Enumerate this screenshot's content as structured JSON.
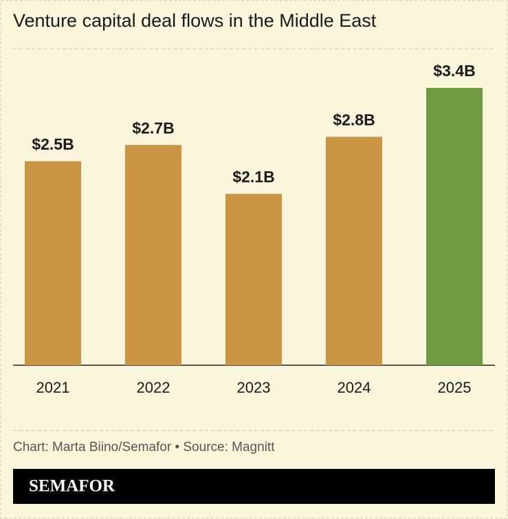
{
  "chart_data": {
    "type": "bar",
    "title": "Venture capital deal flows in the Middle East",
    "categories": [
      "2021",
      "2022",
      "2023",
      "2024",
      "2025"
    ],
    "values": [
      2.5,
      2.7,
      2.1,
      2.8,
      3.4
    ],
    "value_labels": [
      "$2.5B",
      "$2.7B",
      "$2.1B",
      "$2.8B",
      "$3.4B"
    ],
    "colors": [
      "#c99444",
      "#c99444",
      "#c99444",
      "#c99444",
      "#6e9b3f"
    ],
    "source": "Chart: Marta Biino/Semafor • Source: Magnitt",
    "brand": "SEMAFOR"
  }
}
